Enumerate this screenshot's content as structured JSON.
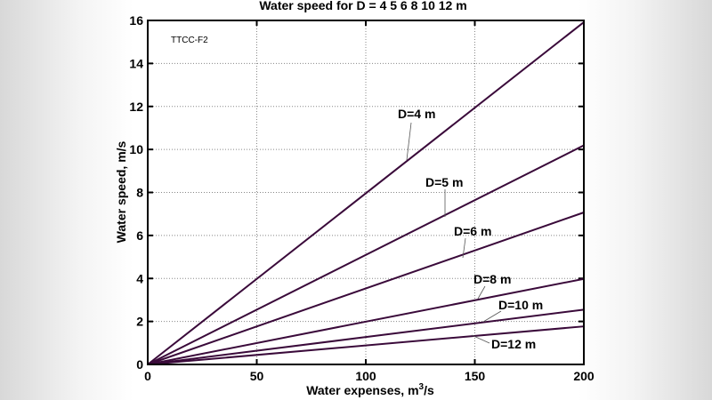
{
  "chart_data": {
    "type": "line",
    "title": "Water speed for D = 4   5   6   8  10  12 m",
    "xlabel": "Water expenses, m³/s",
    "xlabel_base": "Water expenses, m",
    "xlabel_sup": "3",
    "xlabel_tail": "/s",
    "ylabel": "Water speed, m/s",
    "xlim": [
      0,
      200
    ],
    "ylim": [
      0,
      16
    ],
    "xticks": [
      0,
      50,
      100,
      150,
      200
    ],
    "yticks": [
      0,
      2,
      4,
      6,
      8,
      10,
      12,
      14,
      16
    ],
    "grid": true,
    "annotation": "TTCC-F2",
    "line_color": "#3a0a3a",
    "series": [
      {
        "name": "D=4 m",
        "x": [
          0,
          200
        ],
        "y": [
          0,
          15.92
        ]
      },
      {
        "name": "D=5 m",
        "x": [
          0,
          200
        ],
        "y": [
          0,
          10.19
        ]
      },
      {
        "name": "D=6 m",
        "x": [
          0,
          200
        ],
        "y": [
          0,
          7.07
        ]
      },
      {
        "name": "D=8 m",
        "x": [
          0,
          200
        ],
        "y": [
          0,
          3.98
        ]
      },
      {
        "name": "D=10 m",
        "x": [
          0,
          200
        ],
        "y": [
          0,
          2.55
        ]
      },
      {
        "name": "D=12 m",
        "x": [
          0,
          200
        ],
        "y": [
          0,
          1.77
        ]
      }
    ]
  }
}
